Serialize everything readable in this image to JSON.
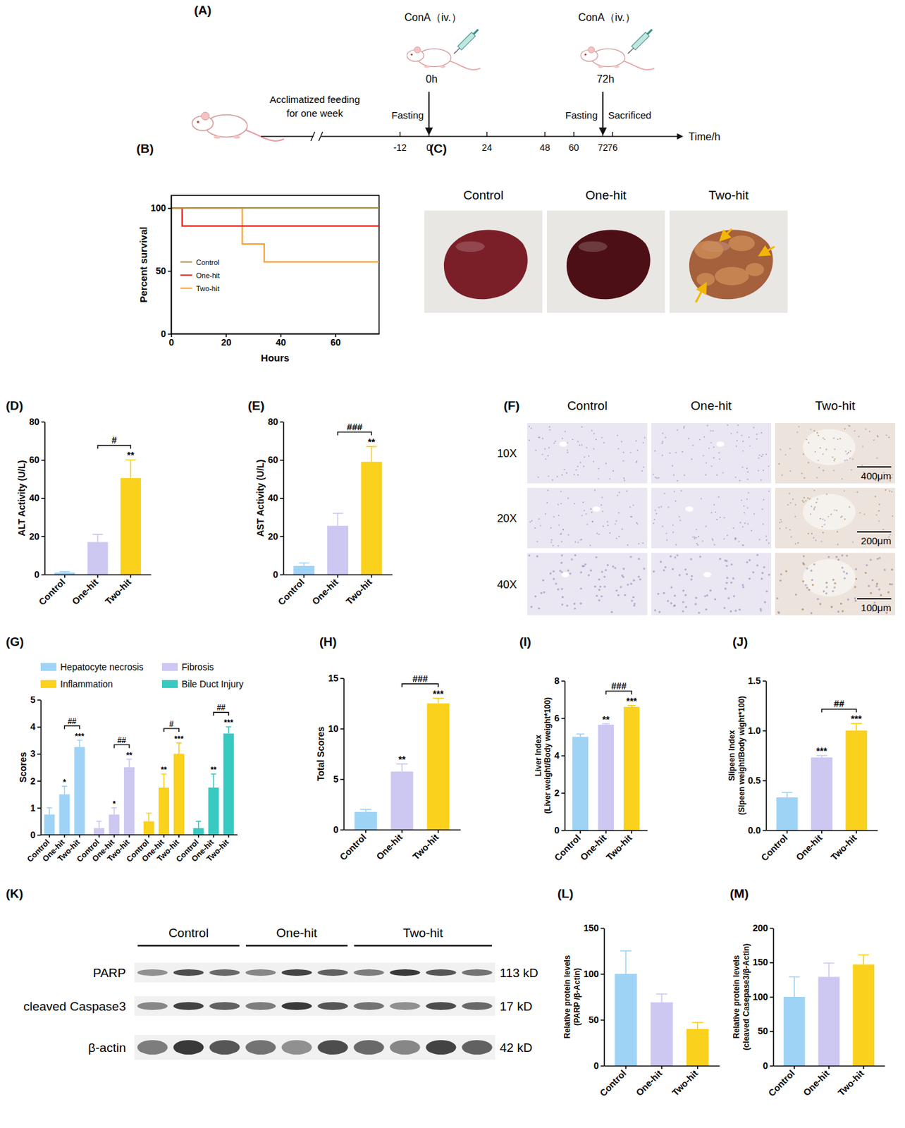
{
  "timeline": {
    "panel": "(A)",
    "acclimatization": [
      "Acclimatized feeding",
      "for one week"
    ],
    "ticks": [
      -12,
      0,
      24,
      48,
      60,
      72,
      76
    ],
    "axis_label": "Time/h",
    "events": [
      {
        "time": 0,
        "label": "ConA（iv.）",
        "time_label": "0h",
        "before": "Fasting"
      },
      {
        "time": 72,
        "label": "ConA（iv.）",
        "time_label": "72h",
        "before": "Fasting",
        "after": "Sacrificed"
      }
    ]
  },
  "photos": {
    "panel": "(C)",
    "titles": [
      "Control",
      "One-hit",
      "Two-hit"
    ]
  },
  "histology": {
    "panel": "(F)",
    "columns": [
      "Control",
      "One-hit",
      "Two-hit"
    ],
    "rows": [
      "10X",
      "20X",
      "40X"
    ],
    "scale_bars": [
      "400μm",
      "200μm",
      "100μm"
    ]
  },
  "blot": {
    "panel": "(K)",
    "groups": [
      {
        "name": "Control",
        "lanes": 3
      },
      {
        "name": "One-hit",
        "lanes": 3
      },
      {
        "name": "Two-hit",
        "lanes": 4
      }
    ],
    "rows": [
      {
        "name": "PARP",
        "size": "113 kD"
      },
      {
        "name": "cleaved Caspase3",
        "size": "17 kD"
      },
      {
        "name": "β-actin",
        "size": "42 kD"
      }
    ]
  },
  "chart_data": [
    {
      "panel": "(B)",
      "type": "line",
      "line_style": "step",
      "x": [
        0,
        4,
        26,
        34,
        76
      ],
      "xlim": [
        0,
        76
      ],
      "xticks": [
        0,
        20,
        40,
        60
      ],
      "ylim": [
        0,
        110
      ],
      "yticks": [
        0,
        50,
        100
      ],
      "xlabel": "Hours",
      "ylabel": "Percent survival",
      "legend": "left",
      "series": [
        {
          "name": "Control",
          "color": "#a8904a",
          "values": [
            100,
            100,
            100,
            100,
            100
          ]
        },
        {
          "name": "One-hit",
          "color": "#e2231a",
          "values": [
            100,
            85.7,
            85.7,
            85.7,
            85.7
          ]
        },
        {
          "name": "Two-hit",
          "color": "#f5a33c",
          "values": [
            100,
            100,
            71.4,
            57.1,
            57.1
          ]
        }
      ]
    },
    {
      "panel": "(D)",
      "type": "bar",
      "categories": [
        "Control",
        "One-hit",
        "Two-hit"
      ],
      "values": [
        1,
        17,
        50.5
      ],
      "errors": [
        0.5,
        4,
        9.5
      ],
      "colors": [
        "#9fd3f5",
        "#cdc8f2",
        "#fad11c"
      ],
      "ylim": [
        0,
        80
      ],
      "yticks": [
        0,
        20,
        40,
        60,
        80
      ],
      "ylabel": "ALT Activity  (U/L)",
      "annotations": {
        "stars": [
          null,
          null,
          "**"
        ],
        "brackets": [
          {
            "between": [
              "One-hit",
              "Two-hit"
            ],
            "text": "#"
          }
        ]
      }
    },
    {
      "panel": "(E)",
      "type": "bar",
      "categories": [
        "Control",
        "One-hit",
        "Two-hit"
      ],
      "values": [
        4.5,
        25.5,
        59
      ],
      "errors": [
        1.5,
        6.5,
        8
      ],
      "colors": [
        "#9fd3f5",
        "#cdc8f2",
        "#fad11c"
      ],
      "ylim": [
        0,
        80
      ],
      "yticks": [
        0,
        20,
        40,
        60,
        80
      ],
      "ylabel": "AST Activity  (U/L)",
      "annotations": {
        "stars": [
          null,
          null,
          "**"
        ],
        "brackets": [
          {
            "between": [
              "One-hit",
              "Two-hit"
            ],
            "text": "###"
          }
        ]
      }
    },
    {
      "panel": "(G)",
      "type": "bar",
      "categories": [
        "Control",
        "One-hit",
        "Two-hit"
      ],
      "ylim": [
        0,
        5
      ],
      "yticks": [
        0,
        1,
        2,
        3,
        4,
        5
      ],
      "ylabel": "Scores",
      "legend": "top",
      "series": [
        {
          "name": "Hepatocyte necrosis",
          "color": "#9fd3f5",
          "values": [
            0.75,
            1.5,
            3.25
          ],
          "errors": [
            0.25,
            0.3,
            0.25
          ],
          "annotations": {
            "stars": [
              null,
              "*",
              "***"
            ],
            "brackets": [
              {
                "between": [
                  "One-hit",
                  "Two-hit"
                ],
                "text": "##"
              }
            ]
          }
        },
        {
          "name": "Fibrosis",
          "color": "#cdc8f2",
          "values": [
            0.25,
            0.75,
            2.5
          ],
          "errors": [
            0.25,
            0.25,
            0.3
          ],
          "annotations": {
            "stars": [
              null,
              "*",
              "**"
            ],
            "brackets": [
              {
                "between": [
                  "One-hit",
                  "Two-hit"
                ],
                "text": "##"
              }
            ]
          }
        },
        {
          "name": "Inflammation",
          "color": "#fad11c",
          "values": [
            0.5,
            1.75,
            3.0
          ],
          "errors": [
            0.3,
            0.5,
            0.4
          ],
          "annotations": {
            "stars": [
              null,
              "**",
              "***"
            ],
            "brackets": [
              {
                "between": [
                  "One-hit",
                  "Two-hit"
                ],
                "text": "#"
              }
            ]
          }
        },
        {
          "name": "Bile Duct Injury",
          "color": "#38c9c0",
          "values": [
            0.25,
            1.75,
            3.75
          ],
          "errors": [
            0.25,
            0.5,
            0.25
          ],
          "annotations": {
            "stars": [
              null,
              "**",
              "***"
            ],
            "brackets": [
              {
                "between": [
                  "One-hit",
                  "Two-hit"
                ],
                "text": "##"
              }
            ]
          }
        }
      ]
    },
    {
      "panel": "(H)",
      "type": "bar",
      "categories": [
        "Control",
        "One-hit",
        "Two-hit"
      ],
      "values": [
        1.75,
        5.75,
        12.5
      ],
      "errors": [
        0.25,
        0.75,
        0.5
      ],
      "colors": [
        "#9fd3f5",
        "#cdc8f2",
        "#fad11c"
      ],
      "ylim": [
        0,
        15
      ],
      "yticks": [
        0,
        5,
        10,
        15
      ],
      "ylabel": "Total Scores",
      "annotations": {
        "stars": [
          null,
          "**",
          "***"
        ],
        "brackets": [
          {
            "between": [
              "One-hit",
              "Two-hit"
            ],
            "text": "###"
          }
        ]
      }
    },
    {
      "panel": "(I)",
      "type": "bar",
      "categories": [
        "Control",
        "One-hit",
        "Two-hit"
      ],
      "values": [
        5.0,
        5.65,
        6.6
      ],
      "errors": [
        0.15,
        0.05,
        0.07
      ],
      "colors": [
        "#9fd3f5",
        "#cdc8f2",
        "#fad11c"
      ],
      "ylim": [
        0,
        8
      ],
      "yticks": [
        0,
        2,
        4,
        6,
        8
      ],
      "ylabel": [
        "Liver Index",
        "(Liver weight/Body weight*100)"
      ],
      "annotations": {
        "stars": [
          null,
          "**",
          "***"
        ],
        "brackets": [
          {
            "between": [
              "One-hit",
              "Two-hit"
            ],
            "text": "###"
          }
        ]
      }
    },
    {
      "panel": "(J)",
      "type": "bar",
      "categories": [
        "Control",
        "One-hit",
        "Two-hit"
      ],
      "values": [
        0.33,
        0.73,
        1.0
      ],
      "errors": [
        0.05,
        0.02,
        0.07
      ],
      "colors": [
        "#9fd3f5",
        "#cdc8f2",
        "#fad11c"
      ],
      "ylim": [
        0,
        1.5
      ],
      "yticks": [
        {
          "value": 0,
          "label": "0.0"
        },
        0.5,
        {
          "value": 1,
          "label": "1.0"
        },
        1.5
      ],
      "ylabel": [
        "Slipeen Index",
        "(Slpeen weight/Body wight*100)"
      ],
      "annotations": {
        "stars": [
          null,
          "***",
          "***"
        ],
        "brackets": [
          {
            "between": [
              "One-hit",
              "Two-hit"
            ],
            "text": "##"
          }
        ]
      }
    },
    {
      "panel": "(L)",
      "type": "bar",
      "categories": [
        "Control",
        "One-hit",
        "Two-hit"
      ],
      "values": [
        100,
        69,
        40
      ],
      "errors": [
        25,
        9,
        7
      ],
      "colors": [
        "#9fd3f5",
        "#cdc8f2",
        "#fad11c"
      ],
      "ylim": [
        0,
        150
      ],
      "yticks": [
        0,
        50,
        100,
        150
      ],
      "ylabel": [
        "Relative protein levels",
        "(PARP /β-Actin)"
      ]
    },
    {
      "panel": "(M)",
      "type": "bar",
      "categories": [
        "Control",
        "One-hit",
        "Two-hit"
      ],
      "values": [
        100,
        129,
        147
      ],
      "errors": [
        29,
        20,
        14
      ],
      "colors": [
        "#9fd3f5",
        "#cdc8f2",
        "#fad11c"
      ],
      "ylim": [
        0,
        200
      ],
      "yticks": [
        0,
        50,
        100,
        150,
        200
      ],
      "ylabel": [
        "Relative protein levels",
        "(cleaved Casepase3/β-Actin)"
      ]
    }
  ]
}
